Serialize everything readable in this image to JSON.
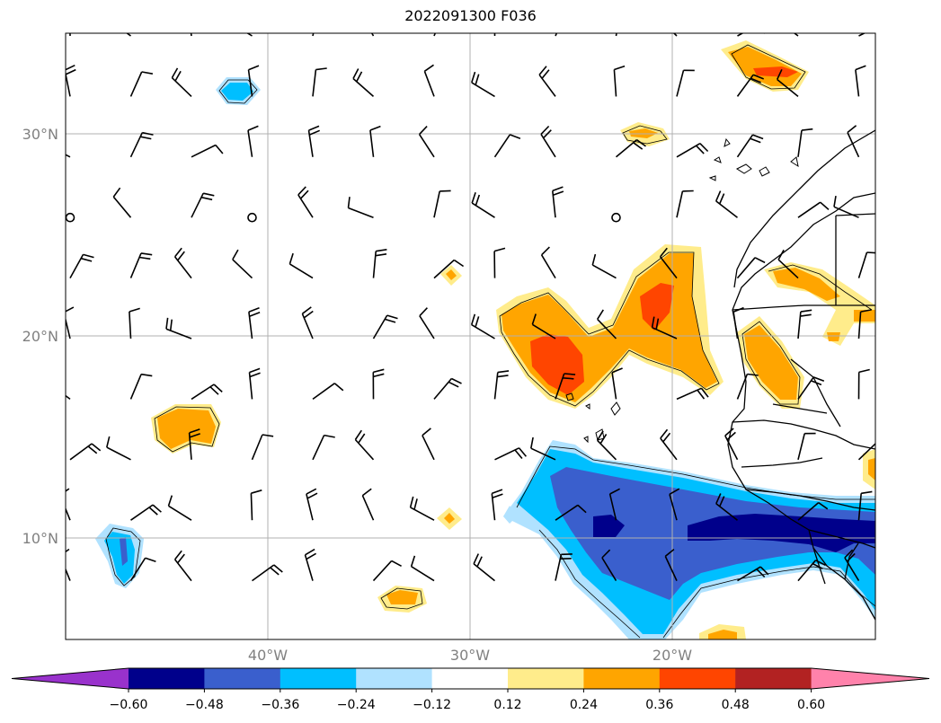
{
  "title": "2022091300 F036",
  "map": {
    "lat_labels": [
      "30°N",
      "20°N",
      "10°N"
    ],
    "lon_labels": [
      "40°W",
      "30°W",
      "20°W"
    ],
    "extent": {
      "lon_min": -50,
      "lon_max": -10,
      "lat_min": 5,
      "lat_max": 35
    },
    "gridlines": true
  },
  "colorbar": {
    "levels": [
      "−0.60",
      "−0.48",
      "−0.36",
      "−0.24",
      "−0.12",
      "0.12",
      "0.24",
      "0.36",
      "0.48",
      "0.60"
    ],
    "colors": [
      "#9932cc",
      "#00008b",
      "#3a5fcd",
      "#00bfff",
      "#b0e2ff",
      "#ffffff",
      "#ffec8b",
      "#ffa500",
      "#ff4500",
      "#b22222",
      "#ff82ab"
    ],
    "extend": "both"
  }
}
